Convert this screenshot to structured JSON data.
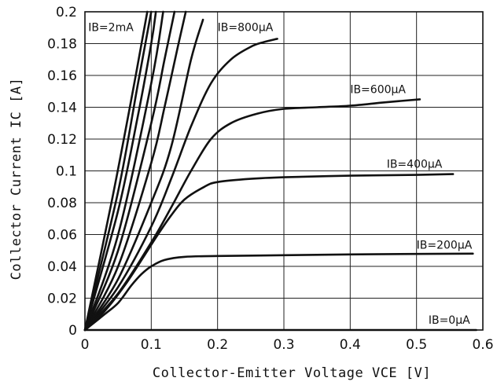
{
  "chart_data": {
    "type": "line",
    "title": "",
    "xlabel": "Collector-Emitter Voltage VCE [V]",
    "ylabel": "Collector Current IC [A]",
    "xlim": [
      0,
      0.6
    ],
    "ylim": [
      0,
      0.2
    ],
    "x_ticks": [
      "0",
      "0.1",
      "0.2",
      "0.3",
      "0.4",
      "0.5",
      "0.6"
    ],
    "y_ticks": [
      "0",
      "0.02",
      "0.04",
      "0.06",
      "0.08",
      "0.1",
      "0.12",
      "0.14",
      "0.16",
      "0.18",
      "0.2"
    ],
    "grid": true,
    "series": [
      {
        "name": "IB=0µA",
        "x": [
          0,
          0.59
        ],
        "y": [
          0,
          0
        ]
      },
      {
        "name": "IB=200µA",
        "x": [
          0,
          0.03,
          0.05,
          0.07,
          0.085,
          0.1,
          0.12,
          0.15,
          0.2,
          0.3,
          0.4,
          0.5,
          0.585
        ],
        "y": [
          0,
          0.01,
          0.017,
          0.028,
          0.035,
          0.04,
          0.044,
          0.046,
          0.0465,
          0.047,
          0.0475,
          0.0478,
          0.048
        ]
      },
      {
        "name": "IB=400µA",
        "x": [
          0,
          0.03,
          0.06,
          0.09,
          0.11,
          0.13,
          0.15,
          0.18,
          0.2,
          0.25,
          0.3,
          0.4,
          0.5,
          0.555
        ],
        "y": [
          0,
          0.012,
          0.028,
          0.047,
          0.06,
          0.072,
          0.082,
          0.09,
          0.093,
          0.095,
          0.096,
          0.097,
          0.0975,
          0.098
        ]
      },
      {
        "name": "IB=600µA",
        "x": [
          0,
          0.05,
          0.1,
          0.13,
          0.16,
          0.19,
          0.22,
          0.26,
          0.3,
          0.35,
          0.4,
          0.45,
          0.505
        ],
        "y": [
          0,
          0.023,
          0.055,
          0.077,
          0.1,
          0.12,
          0.13,
          0.136,
          0.139,
          0.14,
          0.141,
          0.143,
          0.145
        ]
      },
      {
        "name": "IB=800µA",
        "x": [
          0,
          0.05,
          0.1,
          0.13,
          0.16,
          0.19,
          0.22,
          0.25,
          0.27,
          0.29
        ],
        "y": [
          0,
          0.027,
          0.065,
          0.095,
          0.128,
          0.155,
          0.17,
          0.178,
          0.181,
          0.183
        ]
      },
      {
        "name": "",
        "x": [
          0,
          0.05,
          0.1,
          0.13,
          0.16,
          0.178
        ],
        "y": [
          0,
          0.032,
          0.08,
          0.115,
          0.17,
          0.195
        ]
      },
      {
        "name": "",
        "x": [
          0,
          0.05,
          0.1,
          0.12,
          0.14,
          0.152
        ],
        "y": [
          0,
          0.04,
          0.105,
          0.14,
          0.178,
          0.2
        ]
      },
      {
        "name": "",
        "x": [
          0,
          0.05,
          0.1,
          0.12,
          0.135
        ],
        "y": [
          0,
          0.05,
          0.13,
          0.17,
          0.2
        ]
      },
      {
        "name": "",
        "x": [
          0,
          0.05,
          0.1,
          0.118
        ],
        "y": [
          0,
          0.06,
          0.155,
          0.2
        ]
      },
      {
        "name": "",
        "x": [
          0,
          0.05,
          0.08,
          0.1,
          0.107
        ],
        "y": [
          0,
          0.075,
          0.135,
          0.18,
          0.2
        ]
      },
      {
        "name": "",
        "x": [
          0,
          0.05,
          0.08,
          0.1
        ],
        "y": [
          0,
          0.087,
          0.155,
          0.2
        ]
      },
      {
        "name": "IB=2mA",
        "x": [
          0,
          0.04,
          0.07,
          0.094
        ],
        "y": [
          0,
          0.08,
          0.145,
          0.2
        ]
      }
    ],
    "annotations": [
      {
        "text": "IB=2mA",
        "x": 0.005,
        "y": 0.188
      },
      {
        "text": "IB=800µA",
        "x": 0.2,
        "y": 0.188
      },
      {
        "text": "IB=600µA",
        "x": 0.4,
        "y": 0.149
      },
      {
        "text": "IB=400µA",
        "x": 0.455,
        "y": 0.102
      },
      {
        "text": "IB=200µA",
        "x": 0.5,
        "y": 0.051
      },
      {
        "text": "IB=0µA",
        "x": 0.518,
        "y": 0.004
      }
    ]
  }
}
